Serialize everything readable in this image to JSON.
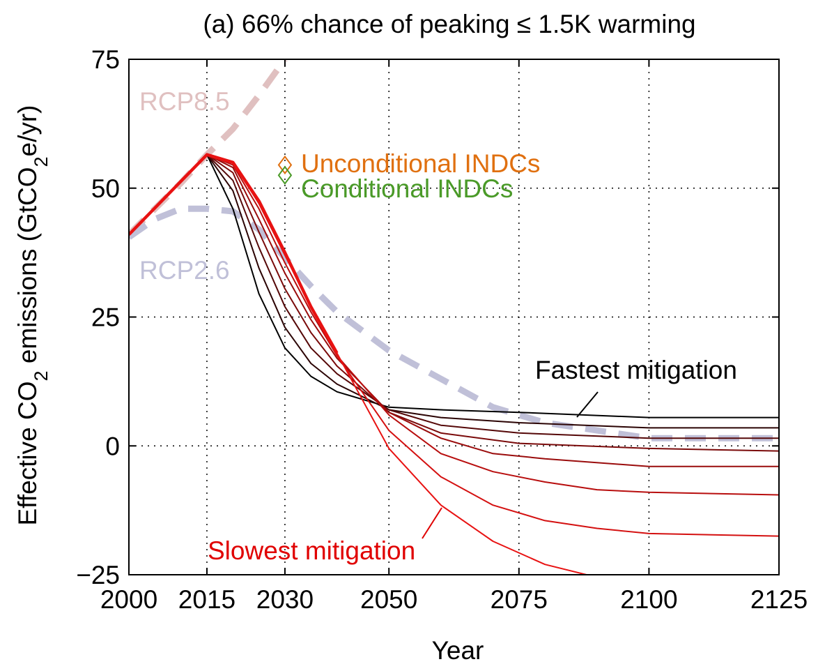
{
  "chart_data": {
    "type": "line",
    "title": "(a) 66% chance of peaking ≤ 1.5K warming",
    "xlabel": "Year",
    "ylabel_parts": [
      "Effective CO",
      "2",
      " emissions (GtCO",
      "2",
      "e/yr)"
    ],
    "xlim": [
      2000,
      2125
    ],
    "ylim": [
      -25,
      75
    ],
    "x_ticks": [
      2000,
      2015,
      2030,
      2050,
      2075,
      2100,
      2125
    ],
    "y_ticks": [
      -25,
      0,
      25,
      50,
      75
    ],
    "y_tick_labels": [
      "−25",
      "0",
      "25",
      "50",
      "75"
    ],
    "grid": true,
    "reference_series": [
      {
        "name": "RCP8.5",
        "color": "#e0c0c0",
        "x": [
          2000,
          2005,
          2010,
          2015,
          2020,
          2025,
          2030
        ],
        "y": [
          41,
          46,
          51,
          56.5,
          61.5,
          68,
          75
        ]
      },
      {
        "name": "RCP2.6",
        "color": "#c0c0d8",
        "x": [
          2000,
          2005,
          2010,
          2015,
          2020,
          2025,
          2030,
          2035,
          2040,
          2050,
          2060,
          2070,
          2080,
          2090,
          2100,
          2125
        ],
        "y": [
          40.5,
          44,
          46,
          46,
          45.5,
          42,
          36.5,
          31,
          26,
          18.5,
          13,
          7.5,
          4.5,
          3,
          1.5,
          1.5
        ]
      }
    ],
    "mitigation_series": [
      {
        "color": "#000000",
        "x": [
          2000,
          2015,
          2020,
          2025,
          2030,
          2035,
          2040,
          2050,
          2060,
          2075,
          2100,
          2125
        ],
        "y": [
          41,
          56.5,
          46,
          29.5,
          19,
          13.5,
          10.5,
          7.5,
          7,
          6.5,
          5.5,
          5.5
        ]
      },
      {
        "color": "#2b0404",
        "x": [
          2000,
          2015,
          2020,
          2025,
          2030,
          2035,
          2040,
          2050,
          2060,
          2075,
          2100,
          2125
        ],
        "y": [
          41,
          56.5,
          49.5,
          34.5,
          23,
          16,
          12,
          7,
          5.5,
          4.5,
          3.5,
          3.5
        ]
      },
      {
        "color": "#550808",
        "x": [
          2000,
          2015,
          2020,
          2025,
          2030,
          2035,
          2040,
          2050,
          2060,
          2075,
          2100,
          2125
        ],
        "y": [
          41,
          56.5,
          51.5,
          38.5,
          27,
          19,
          14,
          7,
          4,
          2.5,
          1.5,
          1.5
        ]
      },
      {
        "color": "#7a0a0a",
        "x": [
          2000,
          2015,
          2020,
          2025,
          2030,
          2035,
          2040,
          2050,
          2060,
          2075,
          2100,
          2125
        ],
        "y": [
          41,
          56.5,
          53,
          41.5,
          30.5,
          22,
          15.5,
          6.5,
          2.5,
          0.5,
          -0.5,
          -1
        ]
      },
      {
        "color": "#9a0c0c",
        "x": [
          2000,
          2015,
          2020,
          2025,
          2030,
          2035,
          2040,
          2050,
          2060,
          2070,
          2080,
          2100,
          2125
        ],
        "y": [
          41,
          56.5,
          54,
          44,
          33.5,
          24.5,
          17,
          6.5,
          1.5,
          -1.5,
          -2.5,
          -4,
          -4
        ]
      },
      {
        "color": "#b80e0e",
        "x": [
          2000,
          2015,
          2020,
          2025,
          2030,
          2035,
          2040,
          2050,
          2060,
          2070,
          2080,
          2090,
          2100,
          2125
        ],
        "y": [
          41,
          56.5,
          54.5,
          46,
          35.5,
          26,
          17.5,
          6,
          -1.5,
          -5,
          -7,
          -8.5,
          -9,
          -9.5
        ]
      },
      {
        "color": "#d41010",
        "x": [
          2000,
          2015,
          2020,
          2025,
          2030,
          2035,
          2040,
          2050,
          2060,
          2070,
          2080,
          2090,
          2100,
          2125
        ],
        "y": [
          41,
          56.5,
          55,
          47,
          37,
          27,
          17.5,
          3,
          -6,
          -11.5,
          -14.5,
          -16,
          -17,
          -17.5
        ]
      },
      {
        "color": "#e81212",
        "x": [
          2000,
          2015,
          2020,
          2025,
          2030,
          2035,
          2040,
          2050,
          2060,
          2070,
          2080,
          2090
        ],
        "y": [
          41,
          56.5,
          55,
          47.5,
          37.5,
          27,
          18,
          -0.5,
          -11.5,
          -18.5,
          -23,
          -25.5
        ]
      },
      {
        "color": "#e81212",
        "width": 4.5,
        "x": [
          2000,
          2015,
          2020,
          2025,
          2030,
          2035,
          2040
        ],
        "y": [
          41,
          56.5,
          55,
          47.5,
          37.5,
          27,
          18
        ]
      }
    ],
    "indc_markers": [
      {
        "name": "Unconditional INDCs",
        "color": "#e07010",
        "x": 2030,
        "y": 54.5
      },
      {
        "name": "Conditional INDCs",
        "color": "#4a9a28",
        "x": 2030,
        "y": 52.5
      }
    ],
    "annotations": [
      {
        "text": "RCP8.5",
        "color": "#e0c0c0"
      },
      {
        "text": "RCP2.6",
        "color": "#c0c0d8"
      },
      {
        "text": "Fastest mitigation",
        "color": "#000000"
      },
      {
        "text": "Slowest mitigation",
        "color": "#e00000"
      }
    ]
  }
}
